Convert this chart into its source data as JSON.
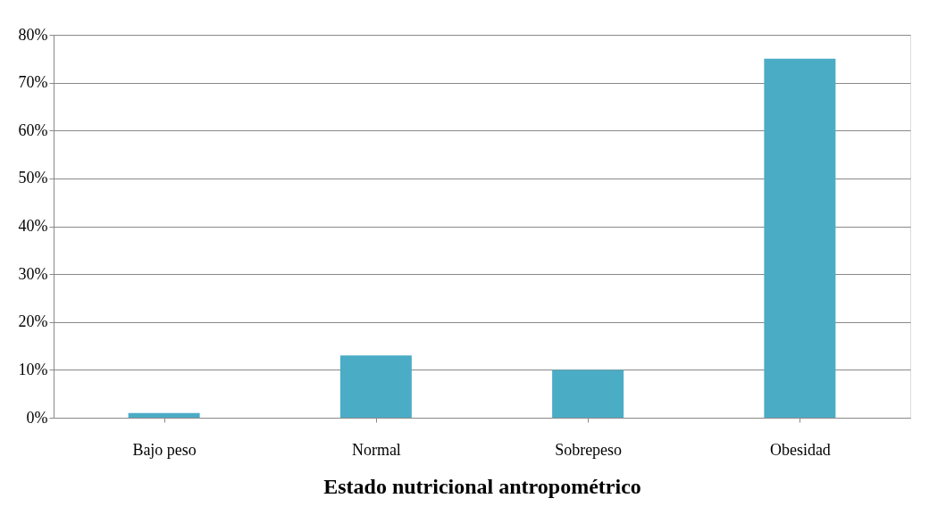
{
  "chart_data": {
    "type": "bar",
    "xlabel": "Estado nutricional antropométrico",
    "categories": [
      "Bajo peso",
      "Normal",
      "Sobrepeso",
      "Obesidad"
    ],
    "values": [
      1,
      13,
      10,
      75
    ],
    "color": "#4bacc6",
    "ylim": [
      0,
      80
    ],
    "yticks": [
      {
        "value": 0,
        "label": "0%"
      },
      {
        "value": 10,
        "label": "10%"
      },
      {
        "value": 20,
        "label": "20%"
      },
      {
        "value": 30,
        "label": "30%"
      },
      {
        "value": 40,
        "label": "40%"
      },
      {
        "value": 50,
        "label": "50%"
      },
      {
        "value": 60,
        "label": "60%"
      },
      {
        "value": 70,
        "label": "70%"
      },
      {
        "value": 80,
        "label": "80%"
      }
    ],
    "grid": "y"
  }
}
